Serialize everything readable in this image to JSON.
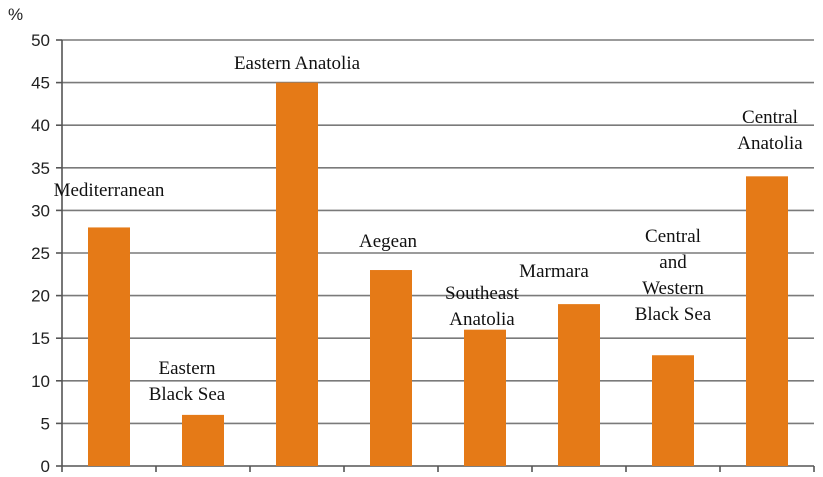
{
  "chart_data": {
    "type": "bar",
    "ylabel": "%",
    "ylim": [
      0,
      50
    ],
    "yticks": [
      0,
      5,
      10,
      15,
      20,
      25,
      30,
      35,
      40,
      45,
      50
    ],
    "grid": true,
    "bar_color": "#e57a17",
    "categories": [
      {
        "lines": [
          "Mediterranean"
        ]
      },
      {
        "lines": [
          "Eastern",
          "Black Sea"
        ]
      },
      {
        "lines": [
          "Eastern Anatolia"
        ]
      },
      {
        "lines": [
          "Aegean"
        ]
      },
      {
        "lines": [
          "Southeast",
          "Anatolia"
        ]
      },
      {
        "lines": [
          "Marmara"
        ]
      },
      {
        "lines": [
          "Central",
          "and",
          "Western",
          "Black Sea"
        ]
      },
      {
        "lines": [
          "Central",
          "Anatolia"
        ]
      }
    ],
    "values": [
      28,
      6,
      45,
      23,
      16,
      19,
      13,
      34
    ]
  }
}
